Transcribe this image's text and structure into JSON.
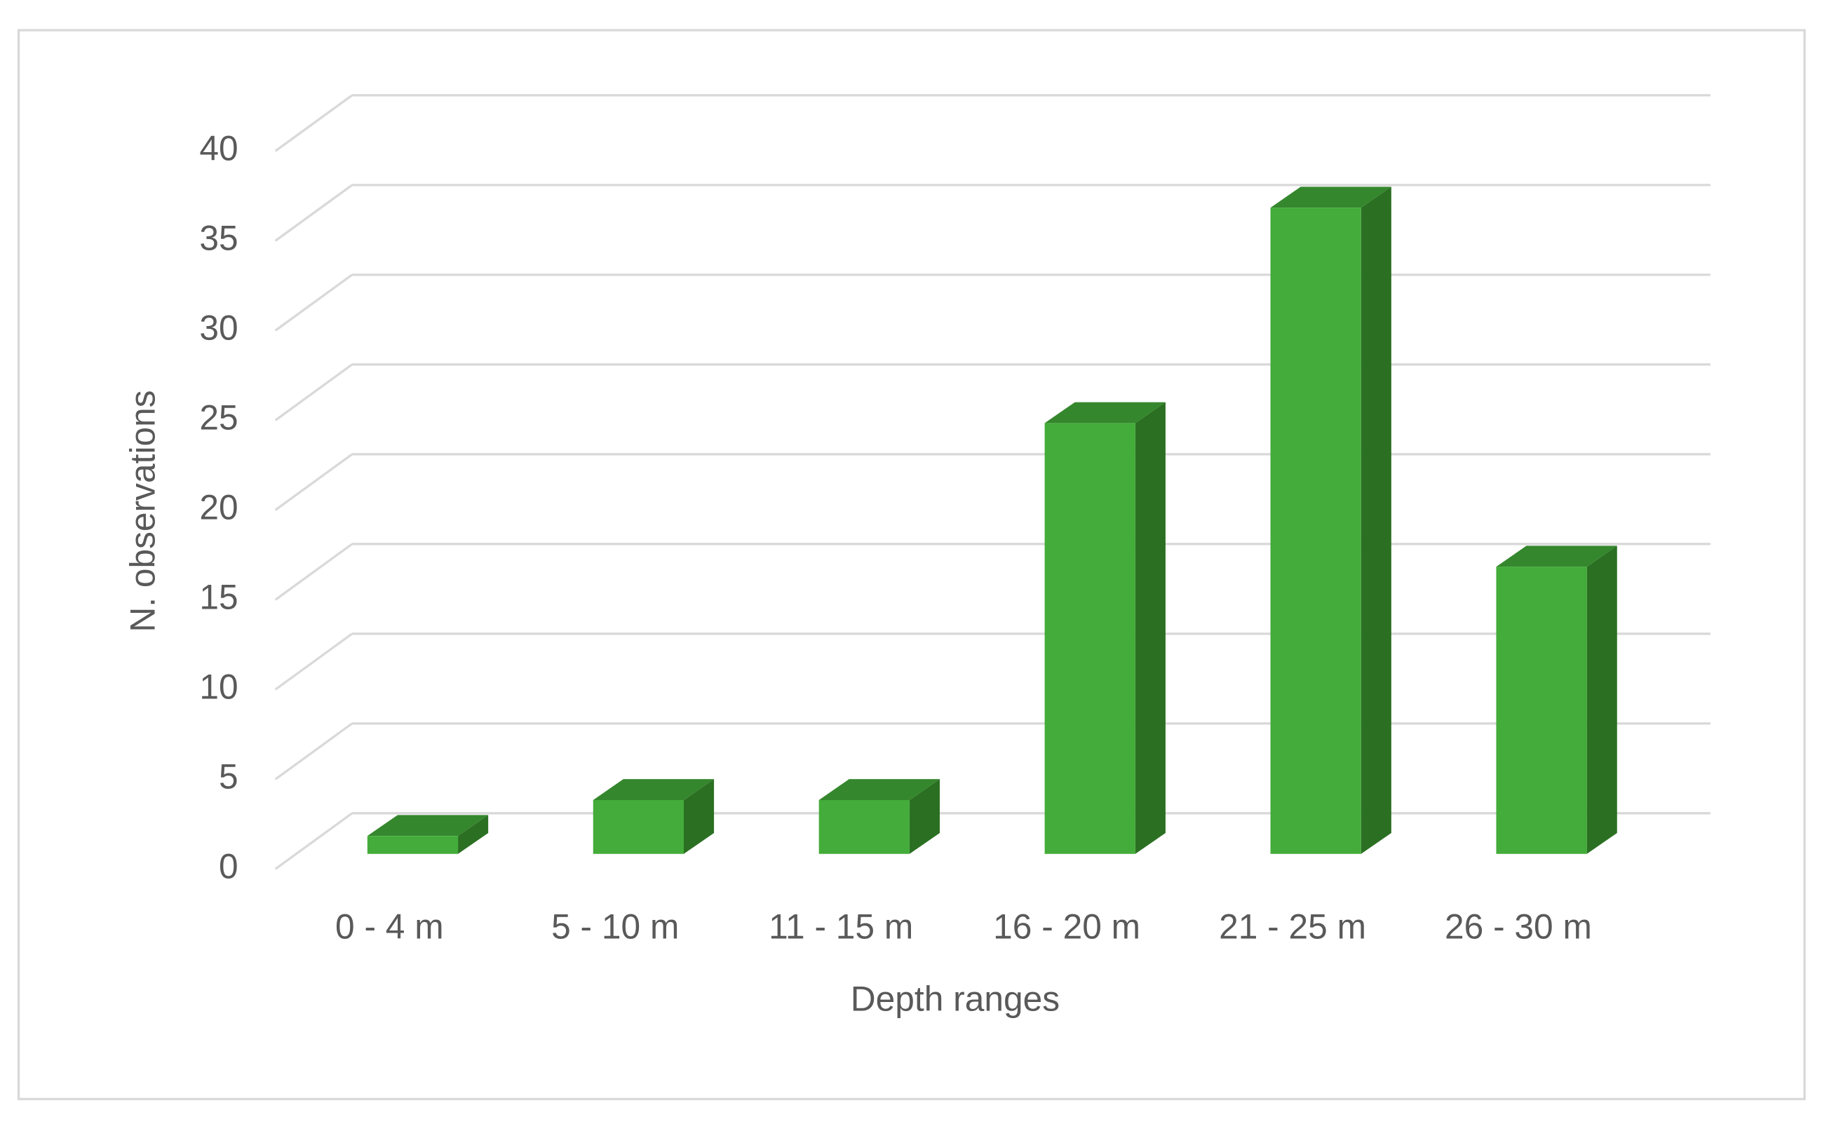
{
  "chart_data": {
    "type": "bar3d",
    "x_label": "Depth ranges",
    "y_label": "N. observations",
    "categories": [
      "0 - 4 m",
      "5 - 10 m",
      "11 - 15 m",
      "16 - 20 m",
      "21 - 25 m",
      "26 - 30 m"
    ],
    "values": [
      1,
      3,
      3,
      24,
      36,
      16
    ],
    "color": "#43ac3a",
    "side_color": "#2b7022",
    "top_color": "#35872d",
    "ylim": [
      0,
      40
    ],
    "yticks": [
      0,
      5,
      10,
      15,
      20,
      25,
      30,
      35,
      40
    ],
    "grid": true
  }
}
